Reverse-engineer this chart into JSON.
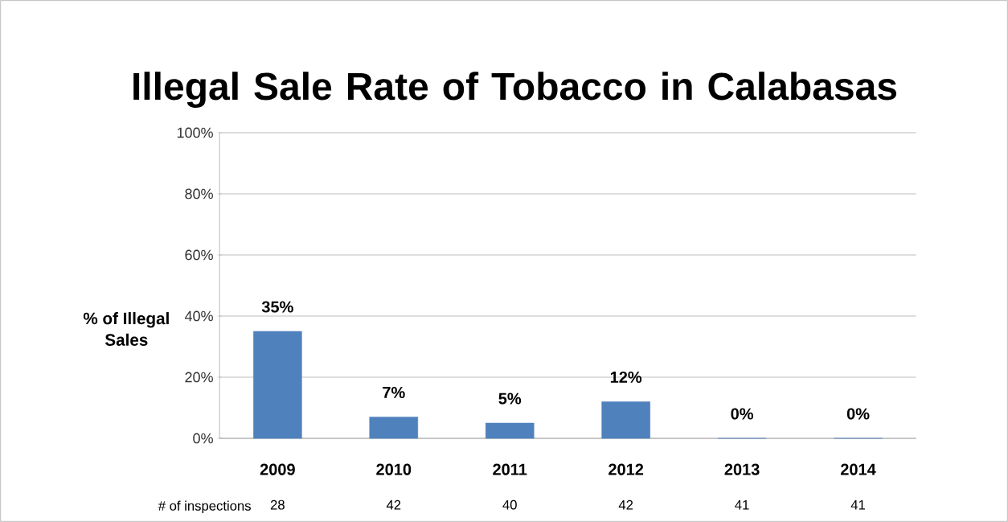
{
  "chart_data": {
    "type": "bar",
    "title": "Illegal Sale Rate of Tobacco in Calabasas",
    "ylabel": "% of Illegal Sales",
    "categories": [
      "2009",
      "2010",
      "2011",
      "2012",
      "2013",
      "2014"
    ],
    "values": [
      35,
      7,
      5,
      12,
      0,
      0
    ],
    "color": "#4f81bd",
    "value_labels": [
      "35%",
      "7%",
      "5%",
      "12%",
      "0%",
      "0%"
    ],
    "ylim": [
      0,
      100
    ],
    "yticks": [
      {
        "value": 0,
        "label": "0%"
      },
      {
        "value": 20,
        "label": "20%"
      },
      {
        "value": 40,
        "label": "40%"
      },
      {
        "value": 60,
        "label": "60%"
      },
      {
        "value": 80,
        "label": "80%"
      },
      {
        "value": 100,
        "label": "100%"
      }
    ],
    "grid": "y",
    "annotations": [
      "# of inspections",
      "28",
      "42",
      "40",
      "42",
      "41",
      "41"
    ]
  }
}
